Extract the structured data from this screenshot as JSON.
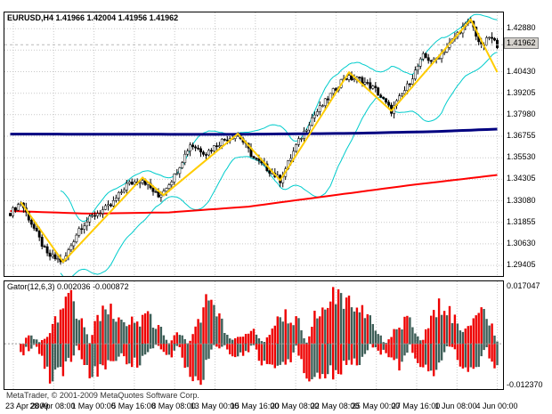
{
  "app": {
    "copyright": "MetaTrader, © 2001-2009 MetaQuotes Software Corp."
  },
  "chart_data": [
    {
      "type": "candlestick",
      "symbol": "EURUSD",
      "period": "H4",
      "header_label": "EURUSD,H4 1.41966 1.42004 1.41956 1.41962",
      "quote": {
        "open": 1.41966,
        "high": 1.42004,
        "low": 1.41956,
        "close": 1.41962
      },
      "current_price": "1.41962",
      "ylim": [
        1.288,
        1.438
      ],
      "y_ticks": [
        "1.42880",
        "1.40430",
        "1.39205",
        "1.37980",
        "1.36755",
        "1.35530",
        "1.34305",
        "1.33080",
        "1.31855",
        "1.30630",
        "1.29405"
      ],
      "hidden_grid_level": 1.41655,
      "x_labels": [
        "23 Apr 2009",
        "28 Apr 08:00",
        "1 May 00:00",
        "5 May 16:00",
        "8 May 08:00",
        "13 May 00:00",
        "15 May 16:00",
        "20 May 08:00",
        "22 May 08:00",
        "25 May 00:00",
        "27 May 16:00",
        "1 Jun 08:00",
        "4 Jun 00:00"
      ],
      "bars": 185,
      "close_path": [
        [
          0,
          1.324
        ],
        [
          4,
          1.33
        ],
        [
          14,
          1.3
        ],
        [
          20,
          1.296
        ],
        [
          26,
          1.315
        ],
        [
          32,
          1.323
        ],
        [
          38,
          1.328
        ],
        [
          44,
          1.34
        ],
        [
          50,
          1.343
        ],
        [
          56,
          1.333
        ],
        [
          62,
          1.345
        ],
        [
          68,
          1.363
        ],
        [
          74,
          1.358
        ],
        [
          80,
          1.365
        ],
        [
          86,
          1.369
        ],
        [
          92,
          1.355
        ],
        [
          98,
          1.348
        ],
        [
          102,
          1.3425
        ],
        [
          108,
          1.362
        ],
        [
          114,
          1.378
        ],
        [
          120,
          1.389
        ],
        [
          126,
          1.401
        ],
        [
          132,
          1.4
        ],
        [
          138,
          1.394
        ],
        [
          144,
          1.382
        ],
        [
          150,
          1.396
        ],
        [
          156,
          1.413
        ],
        [
          160,
          1.41
        ],
        [
          166,
          1.42
        ],
        [
          170,
          1.428
        ],
        [
          174,
          1.433
        ],
        [
          178,
          1.418
        ],
        [
          181,
          1.424
        ],
        [
          184,
          1.4196
        ]
      ],
      "zigzag": [
        [
          4,
          1.33
        ],
        [
          20,
          1.296
        ],
        [
          50,
          1.344
        ],
        [
          58,
          1.334
        ],
        [
          86,
          1.369
        ],
        [
          102,
          1.3425
        ],
        [
          128,
          1.404
        ],
        [
          144,
          1.382
        ],
        [
          174,
          1.434
        ],
        [
          184,
          1.404
        ]
      ],
      "zigzag_color": "#FFCC00",
      "bollinger": {
        "period": 20,
        "deviation": 2,
        "color": "#00CCCC"
      },
      "ma_navy": {
        "color": "#000080",
        "points": [
          [
            0,
            1.3688
          ],
          [
            80,
            1.3686
          ],
          [
            130,
            1.3692
          ],
          [
            160,
            1.3702
          ],
          [
            184,
            1.3716
          ]
        ]
      },
      "ma_red": {
        "color": "#FF0000",
        "points": [
          [
            0,
            1.325
          ],
          [
            30,
            1.3235
          ],
          [
            60,
            1.3242
          ],
          [
            90,
            1.3275
          ],
          [
            120,
            1.3335
          ],
          [
            150,
            1.3395
          ],
          [
            184,
            1.3455
          ]
        ]
      },
      "grid_color": "#C9C9C9"
    },
    {
      "type": "bar",
      "indicator_label": "Gator(12,6,3) 0.002036 -0.000872",
      "name": "Gator",
      "params": "12,6,3",
      "current_values": [
        0.002036,
        -0.000872
      ],
      "ylim": [
        -0.01237,
        0.017047
      ],
      "y_ticks": [
        "0.017047",
        "-0.012370"
      ],
      "colors": {
        "expanding": "#EE0000",
        "contracting": "#3E5F58"
      }
    }
  ]
}
